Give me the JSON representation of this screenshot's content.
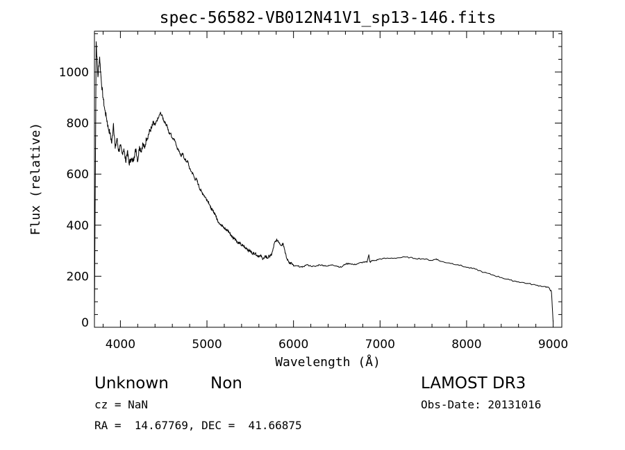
{
  "chart_data": {
    "type": "line",
    "title": "spec-56582-VB012N41V1_sp13-146.fits",
    "xlabel": "Wavelength (Å)",
    "ylabel": "Flux (relative)",
    "xlim": [
      3700,
      9100
    ],
    "ylim": [
      0,
      1160
    ],
    "xticks": [
      "4000",
      "5000",
      "6000",
      "7000",
      "8000",
      "9000"
    ],
    "yticks": [
      "0",
      "200",
      "400",
      "600",
      "800",
      "1000"
    ],
    "grid": false,
    "series": [
      {
        "x": [
          3700,
          3720,
          3740,
          3760,
          3780,
          3800,
          3820,
          3840,
          3860,
          3880,
          3900,
          3920,
          3940,
          3960,
          3980,
          4000,
          4020,
          4040,
          4060,
          4080,
          4100,
          4120,
          4140,
          4160,
          4180,
          4200,
          4220,
          4240,
          4260,
          4280,
          4300,
          4320,
          4340,
          4360,
          4380,
          4400,
          4420,
          4440,
          4460,
          4480,
          4500,
          4520,
          4540,
          4560,
          4580,
          4600,
          4620,
          4640,
          4660,
          4680,
          4700,
          4720,
          4740,
          4760,
          4780,
          4800,
          4820,
          4840,
          4860,
          4880,
          4900,
          4920,
          4940,
          4960,
          4980,
          5000,
          5020,
          5040,
          5060,
          5080,
          5100,
          5120,
          5140,
          5160,
          5180,
          5200,
          5220,
          5240,
          5260,
          5280,
          5300,
          5320,
          5340,
          5360,
          5380,
          5400,
          5420,
          5440,
          5460,
          5480,
          5500,
          5520,
          5540,
          5560,
          5580,
          5600,
          5620,
          5640,
          5660,
          5680,
          5700,
          5720,
          5740,
          5760,
          5780,
          5800,
          5820,
          5840,
          5860,
          5880,
          5900,
          5920,
          5940,
          5960,
          5980,
          6000,
          6050,
          6100,
          6150,
          6200,
          6250,
          6300,
          6350,
          6400,
          6450,
          6500,
          6550,
          6600,
          6650,
          6700,
          6750,
          6800,
          6850,
          6870,
          6880,
          6890,
          6900,
          6950,
          7000,
          7100,
          7200,
          7300,
          7400,
          7500,
          7600,
          7650,
          7700,
          7800,
          7900,
          8000,
          8100,
          8200,
          8300,
          8400,
          8500,
          8600,
          8700,
          8800,
          8900,
          8950,
          8980,
          9000
        ],
        "y": [
          30,
          1120,
          980,
          1060,
          960,
          900,
          850,
          820,
          780,
          760,
          720,
          800,
          700,
          740,
          690,
          710,
          680,
          700,
          650,
          690,
          640,
          660,
          650,
          670,
          700,
          650,
          710,
          690,
          720,
          700,
          740,
          750,
          770,
          780,
          800,
          790,
          810,
          820,
          840,
          830,
          810,
          800,
          790,
          760,
          760,
          740,
          740,
          720,
          700,
          690,
          670,
          680,
          660,
          650,
          650,
          620,
          610,
          600,
          580,
          580,
          560,
          540,
          530,
          520,
          510,
          500,
          490,
          470,
          460,
          450,
          440,
          420,
          410,
          400,
          400,
          390,
          380,
          380,
          370,
          360,
          350,
          350,
          340,
          330,
          330,
          320,
          320,
          310,
          310,
          300,
          300,
          290,
          290,
          290,
          280,
          280,
          280,
          270,
          270,
          280,
          270,
          280,
          280,
          300,
          330,
          340,
          340,
          330,
          320,
          330,
          300,
          270,
          260,
          250,
          250,
          240,
          240,
          235,
          245,
          240,
          238,
          245,
          242,
          240,
          245,
          240,
          235,
          248,
          250,
          245,
          250,
          255,
          255,
          285,
          260,
          255,
          260,
          262,
          268,
          270,
          272,
          275,
          270,
          268,
          262,
          268,
          258,
          252,
          245,
          235,
          228,
          215,
          205,
          195,
          185,
          178,
          172,
          165,
          160,
          155,
          140,
          20
        ]
      }
    ],
    "annotations": {
      "object_class": "Unknown",
      "object_subclass": "Non",
      "survey": "LAMOST DR3",
      "cz": "cz = NaN",
      "obs_date": "Obs-Date: 20131016",
      "coords": "RA =  14.67769, DEC =  41.66875"
    }
  }
}
